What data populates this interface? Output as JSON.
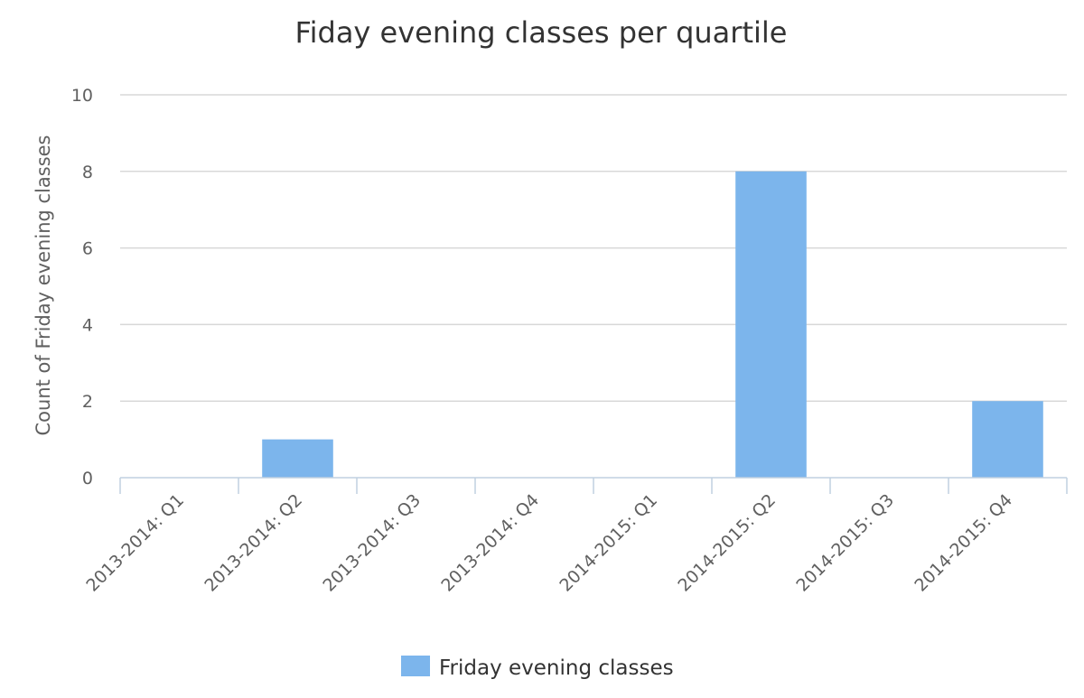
{
  "chart_data": {
    "type": "bar",
    "title": "Fiday evening classes per quartile",
    "xlabel": "",
    "ylabel": "Count of Friday evening classes",
    "categories": [
      "2013-2014: Q1",
      "2013-2014: Q2",
      "2013-2014: Q3",
      "2013-2014: Q4",
      "2014-2015: Q1",
      "2014-2015: Q2",
      "2014-2015: Q3",
      "2014-2015: Q4"
    ],
    "series": [
      {
        "name": "Friday evening classes",
        "values": [
          0,
          1,
          0,
          0,
          0,
          8,
          0,
          2
        ],
        "color": "#7cb5ec"
      }
    ],
    "ylim": [
      0,
      10
    ],
    "yticks": [
      0,
      2,
      4,
      6,
      8,
      10
    ],
    "grid": true,
    "legend_position": "bottom-center"
  }
}
